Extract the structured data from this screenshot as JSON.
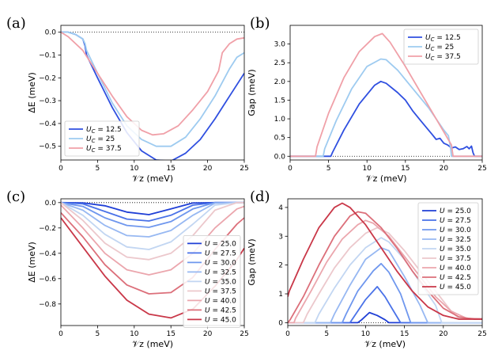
{
  "figure": {
    "panel_labels": [
      "(a)",
      "(b)",
      "(c)",
      "(d)"
    ]
  },
  "chart_data": [
    {
      "id": "a",
      "type": "line",
      "panel_label": "(a)",
      "title": "",
      "xlabel": "𝒱z (meV)",
      "ylabel": "ΔE (meV)",
      "xlim": [
        0,
        25
      ],
      "ylim": [
        -0.56,
        0.03
      ],
      "xticks": [
        0,
        5,
        10,
        15,
        20,
        25
      ],
      "xtick_labels": [
        "0",
        "5",
        "10",
        "15",
        "20",
        "25"
      ],
      "yticks": [
        0.0,
        -0.1,
        -0.2,
        -0.3,
        -0.4,
        -0.5
      ],
      "ytick_labels": [
        "0.0",
        "−0.1",
        "−0.2",
        "−0.3",
        "−0.4",
        "−0.5"
      ],
      "reference_line": 0.0,
      "legend_position": "lower-left",
      "series": [
        {
          "name": "U_C = 12.5",
          "label": "U",
          "sub": "C",
          "value": " = 12.5",
          "color": "#2f4fe0",
          "x": [
            0,
            1,
            2,
            2.5,
            3,
            3.3,
            3.5,
            5,
            7,
            9,
            11,
            13,
            15,
            17,
            19,
            21,
            23,
            25
          ],
          "y": [
            0,
            0,
            -0.01,
            -0.02,
            -0.03,
            -0.06,
            -0.1,
            -0.2,
            -0.33,
            -0.44,
            -0.52,
            -0.56,
            -0.565,
            -0.53,
            -0.47,
            -0.38,
            -0.28,
            -0.18
          ]
        },
        {
          "name": "U_C = 25",
          "label": "U",
          "sub": "C",
          "value": " = 25",
          "color": "#9ecbf0",
          "x": [
            0,
            1,
            2,
            2.5,
            3,
            3.3,
            3.5,
            5,
            7,
            9,
            11,
            13,
            15,
            17,
            19,
            21,
            23,
            24,
            25
          ],
          "y": [
            0,
            0,
            -0.01,
            -0.02,
            -0.03,
            -0.05,
            -0.08,
            -0.18,
            -0.31,
            -0.41,
            -0.47,
            -0.5,
            -0.5,
            -0.46,
            -0.38,
            -0.28,
            -0.16,
            -0.11,
            -0.09
          ]
        },
        {
          "name": "U_C = 37.5",
          "label": "U",
          "sub": "C",
          "value": " = 37.5",
          "color": "#f0a0a8",
          "x": [
            0,
            1,
            3,
            5,
            7,
            9,
            11,
            12.5,
            14,
            16,
            18,
            20,
            21.5,
            22,
            23,
            24,
            25
          ],
          "y": [
            0,
            -0.02,
            -0.08,
            -0.18,
            -0.28,
            -0.37,
            -0.43,
            -0.45,
            -0.445,
            -0.41,
            -0.34,
            -0.26,
            -0.17,
            -0.09,
            -0.05,
            -0.03,
            -0.025
          ]
        }
      ]
    },
    {
      "id": "b",
      "type": "line",
      "panel_label": "(b)",
      "title": "",
      "xlabel": "𝒱z (meV)",
      "ylabel": "Gap (meV)",
      "xlim": [
        0,
        25
      ],
      "ylim": [
        -0.1,
        3.5
      ],
      "xticks": [
        0,
        5,
        10,
        15,
        20,
        25
      ],
      "xtick_labels": [
        "0",
        "5",
        "10",
        "15",
        "20",
        "25"
      ],
      "yticks": [
        0.0,
        0.5,
        1.0,
        1.5,
        2.0,
        2.5,
        3.0
      ],
      "ytick_labels": [
        "0.0",
        "0.5",
        "1.0",
        "1.5",
        "2.0",
        "2.5",
        "3.0"
      ],
      "reference_line": 0.0,
      "legend_position": "top-right",
      "series": [
        {
          "name": "U_C = 12.5",
          "label": "U",
          "sub": "C",
          "value": " = 12.5",
          "color": "#2f4fe0",
          "x": [
            0,
            5.3,
            5.5,
            7,
            9,
            11,
            11.8,
            12.5,
            14,
            15,
            16,
            17,
            18,
            18.5,
            19,
            19.5,
            20,
            20.5,
            21,
            21.5,
            22,
            22.5,
            23,
            23.3,
            23.6,
            23.8,
            24,
            24.5,
            25
          ],
          "y": [
            0,
            0,
            0.1,
            0.7,
            1.4,
            1.9,
            2.0,
            1.95,
            1.7,
            1.5,
            1.2,
            0.95,
            0.7,
            0.58,
            0.45,
            0.48,
            0.35,
            0.3,
            0.22,
            0.25,
            0.18,
            0.2,
            0.26,
            0.2,
            0.27,
            0.1,
            0,
            0,
            0
          ]
        },
        {
          "name": "U_C = 25",
          "label": "U",
          "sub": "C",
          "value": " = 25",
          "color": "#9ecbf0",
          "x": [
            0,
            4.3,
            4.5,
            6,
            8,
            10,
            11.8,
            12.5,
            14,
            16,
            18,
            20,
            20.6,
            20.9,
            21,
            25
          ],
          "y": [
            0,
            0,
            0.2,
            0.95,
            1.8,
            2.4,
            2.6,
            2.58,
            2.3,
            1.8,
            1.3,
            0.7,
            0.55,
            0.2,
            0,
            0
          ]
        },
        {
          "name": "U_C = 37.5",
          "label": "U",
          "sub": "C",
          "value": " = 37.5",
          "color": "#f0a0a8",
          "x": [
            0,
            3.3,
            3.5,
            5,
            7,
            9,
            11,
            12,
            13,
            15,
            17,
            19,
            20,
            21,
            21.2,
            25
          ],
          "y": [
            0,
            0,
            0.25,
            1.15,
            2.1,
            2.8,
            3.2,
            3.28,
            3.05,
            2.4,
            1.7,
            1.0,
            0.65,
            0.3,
            0,
            0
          ]
        }
      ]
    },
    {
      "id": "c",
      "type": "line",
      "panel_label": "(c)",
      "title": "",
      "xlabel": "𝒱z (meV)",
      "ylabel": "ΔE (meV)",
      "xlim": [
        0,
        25
      ],
      "ylim": [
        -0.97,
        0.03
      ],
      "xticks": [
        0,
        5,
        10,
        15,
        20,
        25
      ],
      "xtick_labels": [
        "0",
        "5",
        "10",
        "15",
        "20",
        "25"
      ],
      "yticks": [
        0.0,
        -0.2,
        -0.4,
        -0.6,
        -0.8
      ],
      "ytick_labels": [
        "0.0",
        "−0.2",
        "−0.4",
        "−0.6",
        "−0.8"
      ],
      "reference_line": 0.0,
      "legend_position": "right",
      "series": [
        {
          "name": "U = 25.0",
          "value": " = 25.0",
          "color": "#1f3fd6",
          "x": [
            0,
            3,
            6,
            9,
            12,
            15,
            18,
            21,
            24,
            25
          ],
          "y": [
            0,
            -0.002,
            -0.025,
            -0.075,
            -0.095,
            -0.05,
            -0.003,
            0,
            0,
            0
          ]
        },
        {
          "name": "U = 27.5",
          "value": " = 27.5",
          "color": "#4a72e8",
          "x": [
            0,
            3,
            6,
            9,
            12,
            15,
            18,
            21,
            24,
            25
          ],
          "y": [
            0,
            -0.01,
            -0.07,
            -0.13,
            -0.145,
            -0.1,
            -0.02,
            0,
            0,
            0
          ]
        },
        {
          "name": "U = 30.0",
          "value": " = 30.0",
          "color": "#6f97ee",
          "x": [
            0,
            3,
            6,
            9,
            12,
            15,
            18,
            21,
            24,
            25
          ],
          "y": [
            0,
            -0.03,
            -0.12,
            -0.18,
            -0.195,
            -0.15,
            -0.05,
            0,
            0,
            0
          ]
        },
        {
          "name": "U = 32.5",
          "value": " = 32.5",
          "color": "#97b8f2",
          "x": [
            0,
            3,
            6,
            9,
            12,
            15,
            18,
            21,
            24,
            25
          ],
          "y": [
            0,
            -0.06,
            -0.18,
            -0.26,
            -0.27,
            -0.22,
            -0.1,
            -0.005,
            0,
            0
          ]
        },
        {
          "name": "U = 35.0",
          "value": " = 35.0",
          "color": "#c2d6f2",
          "x": [
            0,
            3,
            6,
            9,
            12,
            15,
            18,
            21,
            24,
            25
          ],
          "y": [
            0,
            -0.1,
            -0.25,
            -0.35,
            -0.37,
            -0.31,
            -0.17,
            -0.02,
            0,
            0
          ]
        },
        {
          "name": "U = 37.5",
          "value": " = 37.5",
          "color": "#ecc8cc",
          "x": [
            0,
            3,
            6,
            9,
            12,
            15,
            18,
            21,
            24,
            25
          ],
          "y": [
            0,
            -0.14,
            -0.32,
            -0.43,
            -0.45,
            -0.4,
            -0.26,
            -0.06,
            0,
            0
          ]
        },
        {
          "name": "U = 40.0",
          "value": " = 40.0",
          "color": "#eba6ad",
          "x": [
            0,
            3,
            6,
            9,
            12,
            15,
            18,
            21,
            24,
            25
          ],
          "y": [
            -0.02,
            -0.2,
            -0.4,
            -0.53,
            -0.57,
            -0.53,
            -0.4,
            -0.2,
            -0.05,
            -0.03
          ]
        },
        {
          "name": "U = 42.5",
          "value": " = 42.5",
          "color": "#dc6f7a",
          "x": [
            0,
            3,
            6,
            9,
            12,
            15,
            18,
            21,
            24,
            25
          ],
          "y": [
            -0.08,
            -0.27,
            -0.49,
            -0.65,
            -0.72,
            -0.71,
            -0.59,
            -0.37,
            -0.17,
            -0.12
          ]
        },
        {
          "name": "U = 45.0",
          "value": " = 45.0",
          "color": "#c93748",
          "x": [
            0,
            3,
            6,
            9,
            12,
            15,
            18,
            21,
            24,
            25
          ],
          "y": [
            -0.12,
            -0.35,
            -0.58,
            -0.77,
            -0.88,
            -0.91,
            -0.84,
            -0.66,
            -0.45,
            -0.36
          ]
        }
      ]
    },
    {
      "id": "d",
      "type": "line",
      "panel_label": "(d)",
      "title": "",
      "xlabel": "𝒱z (meV)",
      "ylabel": "Gap (meV)",
      "xlim": [
        0,
        25
      ],
      "ylim": [
        -0.1,
        4.3
      ],
      "xticks": [
        0,
        5,
        10,
        15,
        20,
        25
      ],
      "xtick_labels": [
        "0",
        "5",
        "10",
        "15",
        "20",
        "25"
      ],
      "yticks": [
        0,
        1,
        2,
        3,
        4
      ],
      "ytick_labels": [
        "0",
        "1",
        "2",
        "3",
        "4"
      ],
      "reference_line": 0.0,
      "legend_position": "top-right",
      "series": [
        {
          "name": "U = 25.0",
          "value": " = 25.0",
          "color": "#1f3fd6",
          "x": [
            0,
            9,
            9.5,
            10.5,
            11.5,
            12.5,
            13,
            25
          ],
          "y": [
            0,
            0,
            0.1,
            0.35,
            0.25,
            0.1,
            0,
            0
          ]
        },
        {
          "name": "U = 27.5",
          "value": " = 27.5",
          "color": "#4a72e8",
          "x": [
            0,
            8,
            8.5,
            10,
            11.5,
            12.5,
            13.5,
            14.5,
            25
          ],
          "y": [
            0,
            0,
            0.2,
            0.8,
            1.25,
            0.9,
            0.45,
            0,
            0
          ]
        },
        {
          "name": "U = 30.0",
          "value": " = 30.0",
          "color": "#6f97ee",
          "x": [
            0,
            7,
            7.5,
            9,
            11,
            12,
            13,
            14.5,
            15.8,
            25
          ],
          "y": [
            0,
            0,
            0.3,
            1.1,
            1.8,
            2.05,
            1.75,
            1.0,
            0,
            0
          ]
        },
        {
          "name": "U = 32.5",
          "value": " = 32.5",
          "color": "#97b8f2",
          "x": [
            0,
            5.5,
            6,
            8,
            10,
            12,
            13,
            15,
            17,
            18,
            25
          ],
          "y": [
            0,
            0,
            0.3,
            1.3,
            2.2,
            2.6,
            2.5,
            1.6,
            0.6,
            0,
            0
          ]
        },
        {
          "name": "U = 35.0",
          "value": " = 35.0",
          "color": "#c2d6f2",
          "x": [
            0,
            3.5,
            4,
            6,
            8,
            10,
            12,
            13,
            15,
            17,
            19,
            19.8,
            25
          ],
          "y": [
            0,
            0,
            0.3,
            1.2,
            2.0,
            2.6,
            2.95,
            2.8,
            2.2,
            1.4,
            0.6,
            0,
            0
          ]
        },
        {
          "name": "U = 37.5",
          "value": " = 37.5",
          "color": "#ecc8cc",
          "x": [
            0,
            2,
            2.5,
            4,
            6,
            8,
            10,
            11.5,
            13,
            15,
            17,
            19,
            21,
            22,
            25
          ],
          "y": [
            0,
            0,
            0.3,
            1.0,
            1.9,
            2.6,
            3.1,
            3.3,
            3.1,
            2.5,
            1.8,
            1.1,
            0.4,
            0.15,
            0.15
          ]
        },
        {
          "name": "U = 40.0",
          "value": " = 40.0",
          "color": "#eba6ad",
          "x": [
            0,
            0.8,
            1,
            3,
            5,
            7,
            9,
            10,
            11,
            13,
            15,
            17,
            19,
            21,
            23,
            25
          ],
          "y": [
            0,
            0,
            0.15,
            1.1,
            2.1,
            2.9,
            3.4,
            3.55,
            3.45,
            3.0,
            2.3,
            1.6,
            0.9,
            0.4,
            0.15,
            0.12
          ]
        },
        {
          "name": "U = 42.5",
          "value": " = 42.5",
          "color": "#dc6f7a",
          "x": [
            0,
            0.3,
            2,
            4,
            6,
            8,
            9,
            10,
            12,
            14,
            16,
            18,
            20,
            22,
            24,
            25
          ],
          "y": [
            0,
            0.1,
            0.9,
            2.0,
            3.0,
            3.7,
            3.85,
            3.8,
            3.3,
            2.6,
            1.8,
            1.1,
            0.5,
            0.2,
            0.12,
            0.12
          ]
        },
        {
          "name": "U = 45.0",
          "value": " = 45.0",
          "color": "#c93748",
          "x": [
            0,
            0.2,
            2,
            4,
            6,
            7,
            8,
            10,
            12,
            14,
            16,
            18,
            20,
            22,
            24,
            25
          ],
          "y": [
            0.9,
            1.1,
            2.2,
            3.3,
            4.0,
            4.15,
            4.0,
            3.4,
            2.6,
            1.8,
            1.1,
            0.55,
            0.25,
            0.12,
            0.12,
            0.12
          ]
        }
      ]
    }
  ]
}
